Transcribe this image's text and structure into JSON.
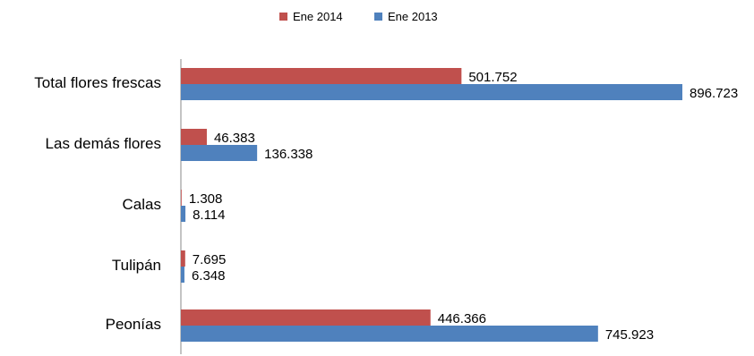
{
  "chart_data": {
    "type": "bar",
    "orientation": "horizontal",
    "categories": [
      "Total flores frescas",
      "Las demás flores",
      "Calas",
      "Tulipán",
      "Peonías"
    ],
    "series": [
      {
        "name": "Ene 2014",
        "color": "#c0504d",
        "values": [
          501752,
          46383,
          1308,
          7695,
          446366
        ],
        "labels": [
          "501.752",
          "46.383",
          "1.308",
          "7.695",
          "446.366"
        ]
      },
      {
        "name": "Ene 2013",
        "color": "#4f81bd",
        "values": [
          896723,
          136338,
          8114,
          6348,
          745923
        ],
        "labels": [
          "896.723",
          "136.338",
          "8.114",
          "6.348",
          "745.923"
        ]
      }
    ],
    "legend": "top-center",
    "grid": false,
    "xlim": [
      0,
      1000000
    ]
  }
}
